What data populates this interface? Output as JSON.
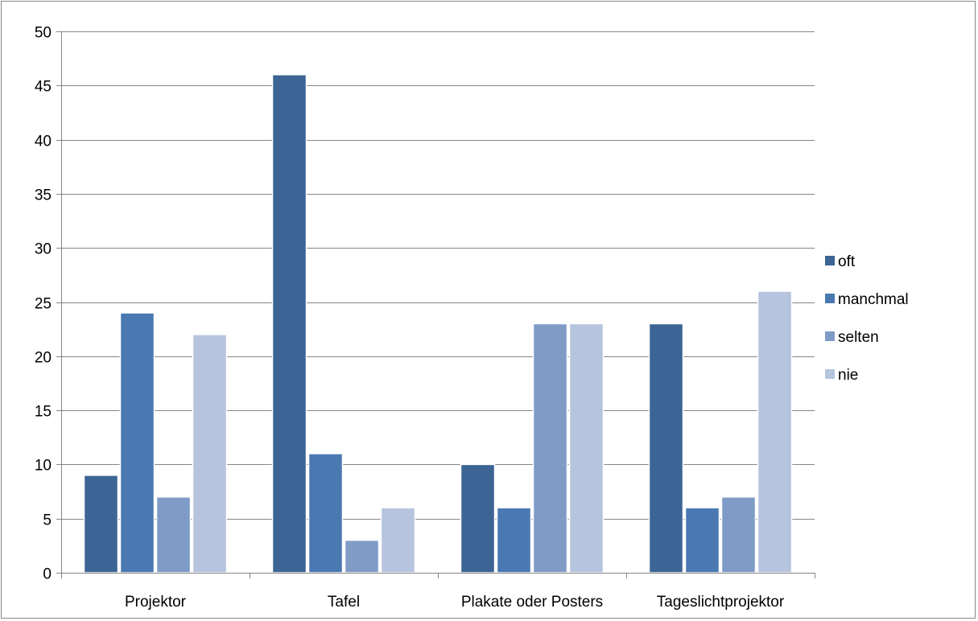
{
  "chart_data": {
    "type": "bar",
    "title": "",
    "xlabel": "",
    "ylabel": "",
    "categories": [
      "Projektor",
      "Tafel",
      "Plakate oder Posters",
      "Tageslichtprojektor"
    ],
    "series": [
      {
        "name": "oft",
        "values": [
          9,
          46,
          10,
          23
        ],
        "color": "#3c6494"
      },
      {
        "name": " manchmal",
        "values": [
          24,
          11,
          6,
          6
        ],
        "color": "#4a79b2"
      },
      {
        "name": "selten",
        "values": [
          7,
          3,
          23,
          7
        ],
        "color": "#7f9cc7"
      },
      {
        "name": "nie",
        "values": [
          22,
          6,
          23,
          26
        ],
        "color": "#b6c4de"
      }
    ],
    "ylim": [
      0,
      50
    ],
    "yticks": [
      0,
      5,
      10,
      15,
      20,
      25,
      30,
      35,
      40,
      45,
      50
    ],
    "grid": true,
    "legend_position": "right"
  }
}
